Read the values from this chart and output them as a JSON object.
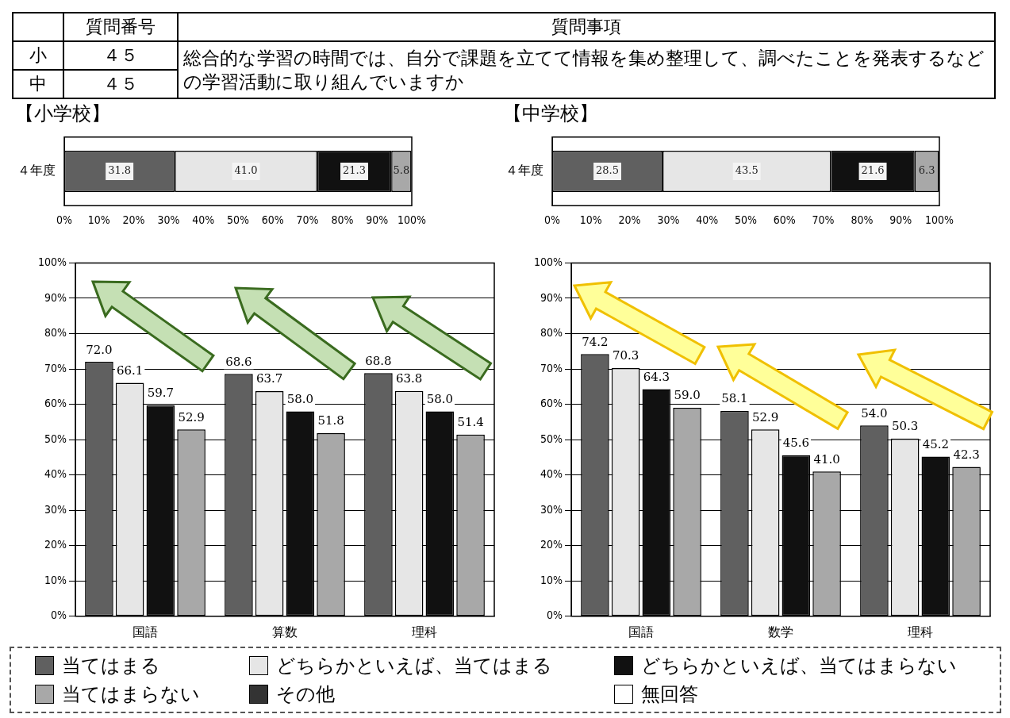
{
  "chart_data": [
    {
      "type": "other",
      "annotations": [
        "質問番号",
        "質問事項",
        "小",
        "４５",
        "中",
        "４５",
        "総合的な学習の時間では、自分で課題を立てて情報を集め整理して、調べたことを発表するなどの学習活動に取り組んでいますか"
      ]
    },
    {
      "type": "bar",
      "title": "【小学校】",
      "orientation": "horizontal",
      "stacked": true,
      "categories": [
        "４年度"
      ],
      "xlim": [
        0,
        100
      ],
      "xticks": [
        {
          "value": 0,
          "label": "0%"
        },
        {
          "value": 10,
          "label": "10%"
        },
        {
          "value": 20,
          "label": "20%"
        },
        {
          "value": 30,
          "label": "30%"
        },
        {
          "value": 40,
          "label": "40%"
        },
        {
          "value": 50,
          "label": "50%"
        },
        {
          "value": 60,
          "label": "60%"
        },
        {
          "value": 70,
          "label": "70%"
        },
        {
          "value": 80,
          "label": "80%"
        },
        {
          "value": 90,
          "label": "90%"
        },
        {
          "value": 100,
          "label": "100%"
        }
      ],
      "legend": "bottom",
      "series": [
        {
          "name": "当てはまる",
          "color": "#606060",
          "values": [
            31.8
          ],
          "value_labels": [
            "31.8"
          ]
        },
        {
          "name": "どちらかといえば、当てはまる",
          "color": "#e6e6e6",
          "values": [
            41.0
          ],
          "value_labels": [
            "41.0"
          ]
        },
        {
          "name": "どちらかといえば、当てはまらない",
          "color": "#111111",
          "values": [
            21.3
          ],
          "value_labels": [
            "21.3"
          ]
        },
        {
          "name": "当てはまらない",
          "color": "#a8a8a8",
          "values": [
            5.8
          ],
          "value_labels": [
            "5.8"
          ]
        },
        {
          "name": "その他",
          "color": "#333333",
          "values": [
            null
          ]
        },
        {
          "name": "無回答",
          "color": "#ffffff",
          "values": [
            null
          ]
        }
      ]
    },
    {
      "type": "bar",
      "title": "【中学校】",
      "orientation": "horizontal",
      "stacked": true,
      "categories": [
        "４年度"
      ],
      "xlim": [
        0,
        100
      ],
      "xticks": [
        {
          "value": 0,
          "label": "0%"
        },
        {
          "value": 10,
          "label": "10%"
        },
        {
          "value": 20,
          "label": "20%"
        },
        {
          "value": 30,
          "label": "30%"
        },
        {
          "value": 40,
          "label": "40%"
        },
        {
          "value": 50,
          "label": "50%"
        },
        {
          "value": 60,
          "label": "60%"
        },
        {
          "value": 70,
          "label": "70%"
        },
        {
          "value": 80,
          "label": "80%"
        },
        {
          "value": 90,
          "label": "90%"
        },
        {
          "value": 100,
          "label": "100%"
        }
      ],
      "series": [
        {
          "color": "#606060",
          "values": [
            28.5
          ],
          "value_labels": [
            "28.5"
          ]
        },
        {
          "color": "#e6e6e6",
          "values": [
            43.5
          ],
          "value_labels": [
            "43.5"
          ]
        },
        {
          "color": "#111111",
          "values": [
            21.6
          ],
          "value_labels": [
            "21.6"
          ]
        },
        {
          "color": "#a8a8a8",
          "values": [
            6.3
          ],
          "value_labels": [
            "6.3"
          ]
        }
      ]
    },
    {
      "type": "bar",
      "categories": [
        "国語",
        "算数",
        "理科"
      ],
      "ylim": [
        0,
        100
      ],
      "yticks": [
        {
          "value": 0,
          "label": "0%"
        },
        {
          "value": 10,
          "label": "10%"
        },
        {
          "value": 20,
          "label": "20%"
        },
        {
          "value": 30,
          "label": "30%"
        },
        {
          "value": 40,
          "label": "40%"
        },
        {
          "value": 50,
          "label": "50%"
        },
        {
          "value": 60,
          "label": "60%"
        },
        {
          "value": 70,
          "label": "70%"
        },
        {
          "value": 80,
          "label": "80%"
        },
        {
          "value": 90,
          "label": "90%"
        },
        {
          "value": 100,
          "label": "100%"
        }
      ],
      "grid": "y",
      "series": [
        {
          "color": "#606060",
          "values": [
            72.0,
            68.6,
            68.8
          ],
          "value_labels": [
            "72.0",
            "68.6",
            "68.8"
          ]
        },
        {
          "color": "#e6e6e6",
          "values": [
            66.1,
            63.7,
            63.8
          ],
          "value_labels": [
            "66.1",
            "63.7",
            "63.8"
          ]
        },
        {
          "color": "#111111",
          "values": [
            59.7,
            58.0,
            58.0
          ],
          "value_labels": [
            "59.7",
            "58.0",
            "58.0"
          ]
        },
        {
          "color": "#a8a8a8",
          "values": [
            52.9,
            51.8,
            51.4
          ],
          "value_labels": [
            "52.9",
            "51.8",
            "51.4"
          ]
        }
      ]
    },
    {
      "type": "bar",
      "categories": [
        "国語",
        "数学",
        "理科"
      ],
      "ylim": [
        0,
        100
      ],
      "yticks": [
        {
          "value": 0,
          "label": "0%"
        },
        {
          "value": 10,
          "label": "10%"
        },
        {
          "value": 20,
          "label": "20%"
        },
        {
          "value": 30,
          "label": "30%"
        },
        {
          "value": 40,
          "label": "40%"
        },
        {
          "value": 50,
          "label": "50%"
        },
        {
          "value": 60,
          "label": "60%"
        },
        {
          "value": 70,
          "label": "70%"
        },
        {
          "value": 80,
          "label": "80%"
        },
        {
          "value": 90,
          "label": "90%"
        },
        {
          "value": 100,
          "label": "100%"
        }
      ],
      "grid": "y",
      "series": [
        {
          "color": "#606060",
          "values": [
            74.2,
            58.1,
            54.0
          ],
          "value_labels": [
            "74.2",
            "58.1",
            "54.0"
          ]
        },
        {
          "color": "#e6e6e6",
          "values": [
            70.3,
            52.9,
            50.3
          ],
          "value_labels": [
            "70.3",
            "52.9",
            "50.3"
          ]
        },
        {
          "color": "#111111",
          "values": [
            64.3,
            45.6,
            45.2
          ],
          "value_labels": [
            "64.3",
            "45.6",
            "45.2"
          ]
        },
        {
          "color": "#a8a8a8",
          "values": [
            59.0,
            41.0,
            42.3
          ],
          "value_labels": [
            "59.0",
            "41.0",
            "42.3"
          ]
        }
      ]
    }
  ]
}
